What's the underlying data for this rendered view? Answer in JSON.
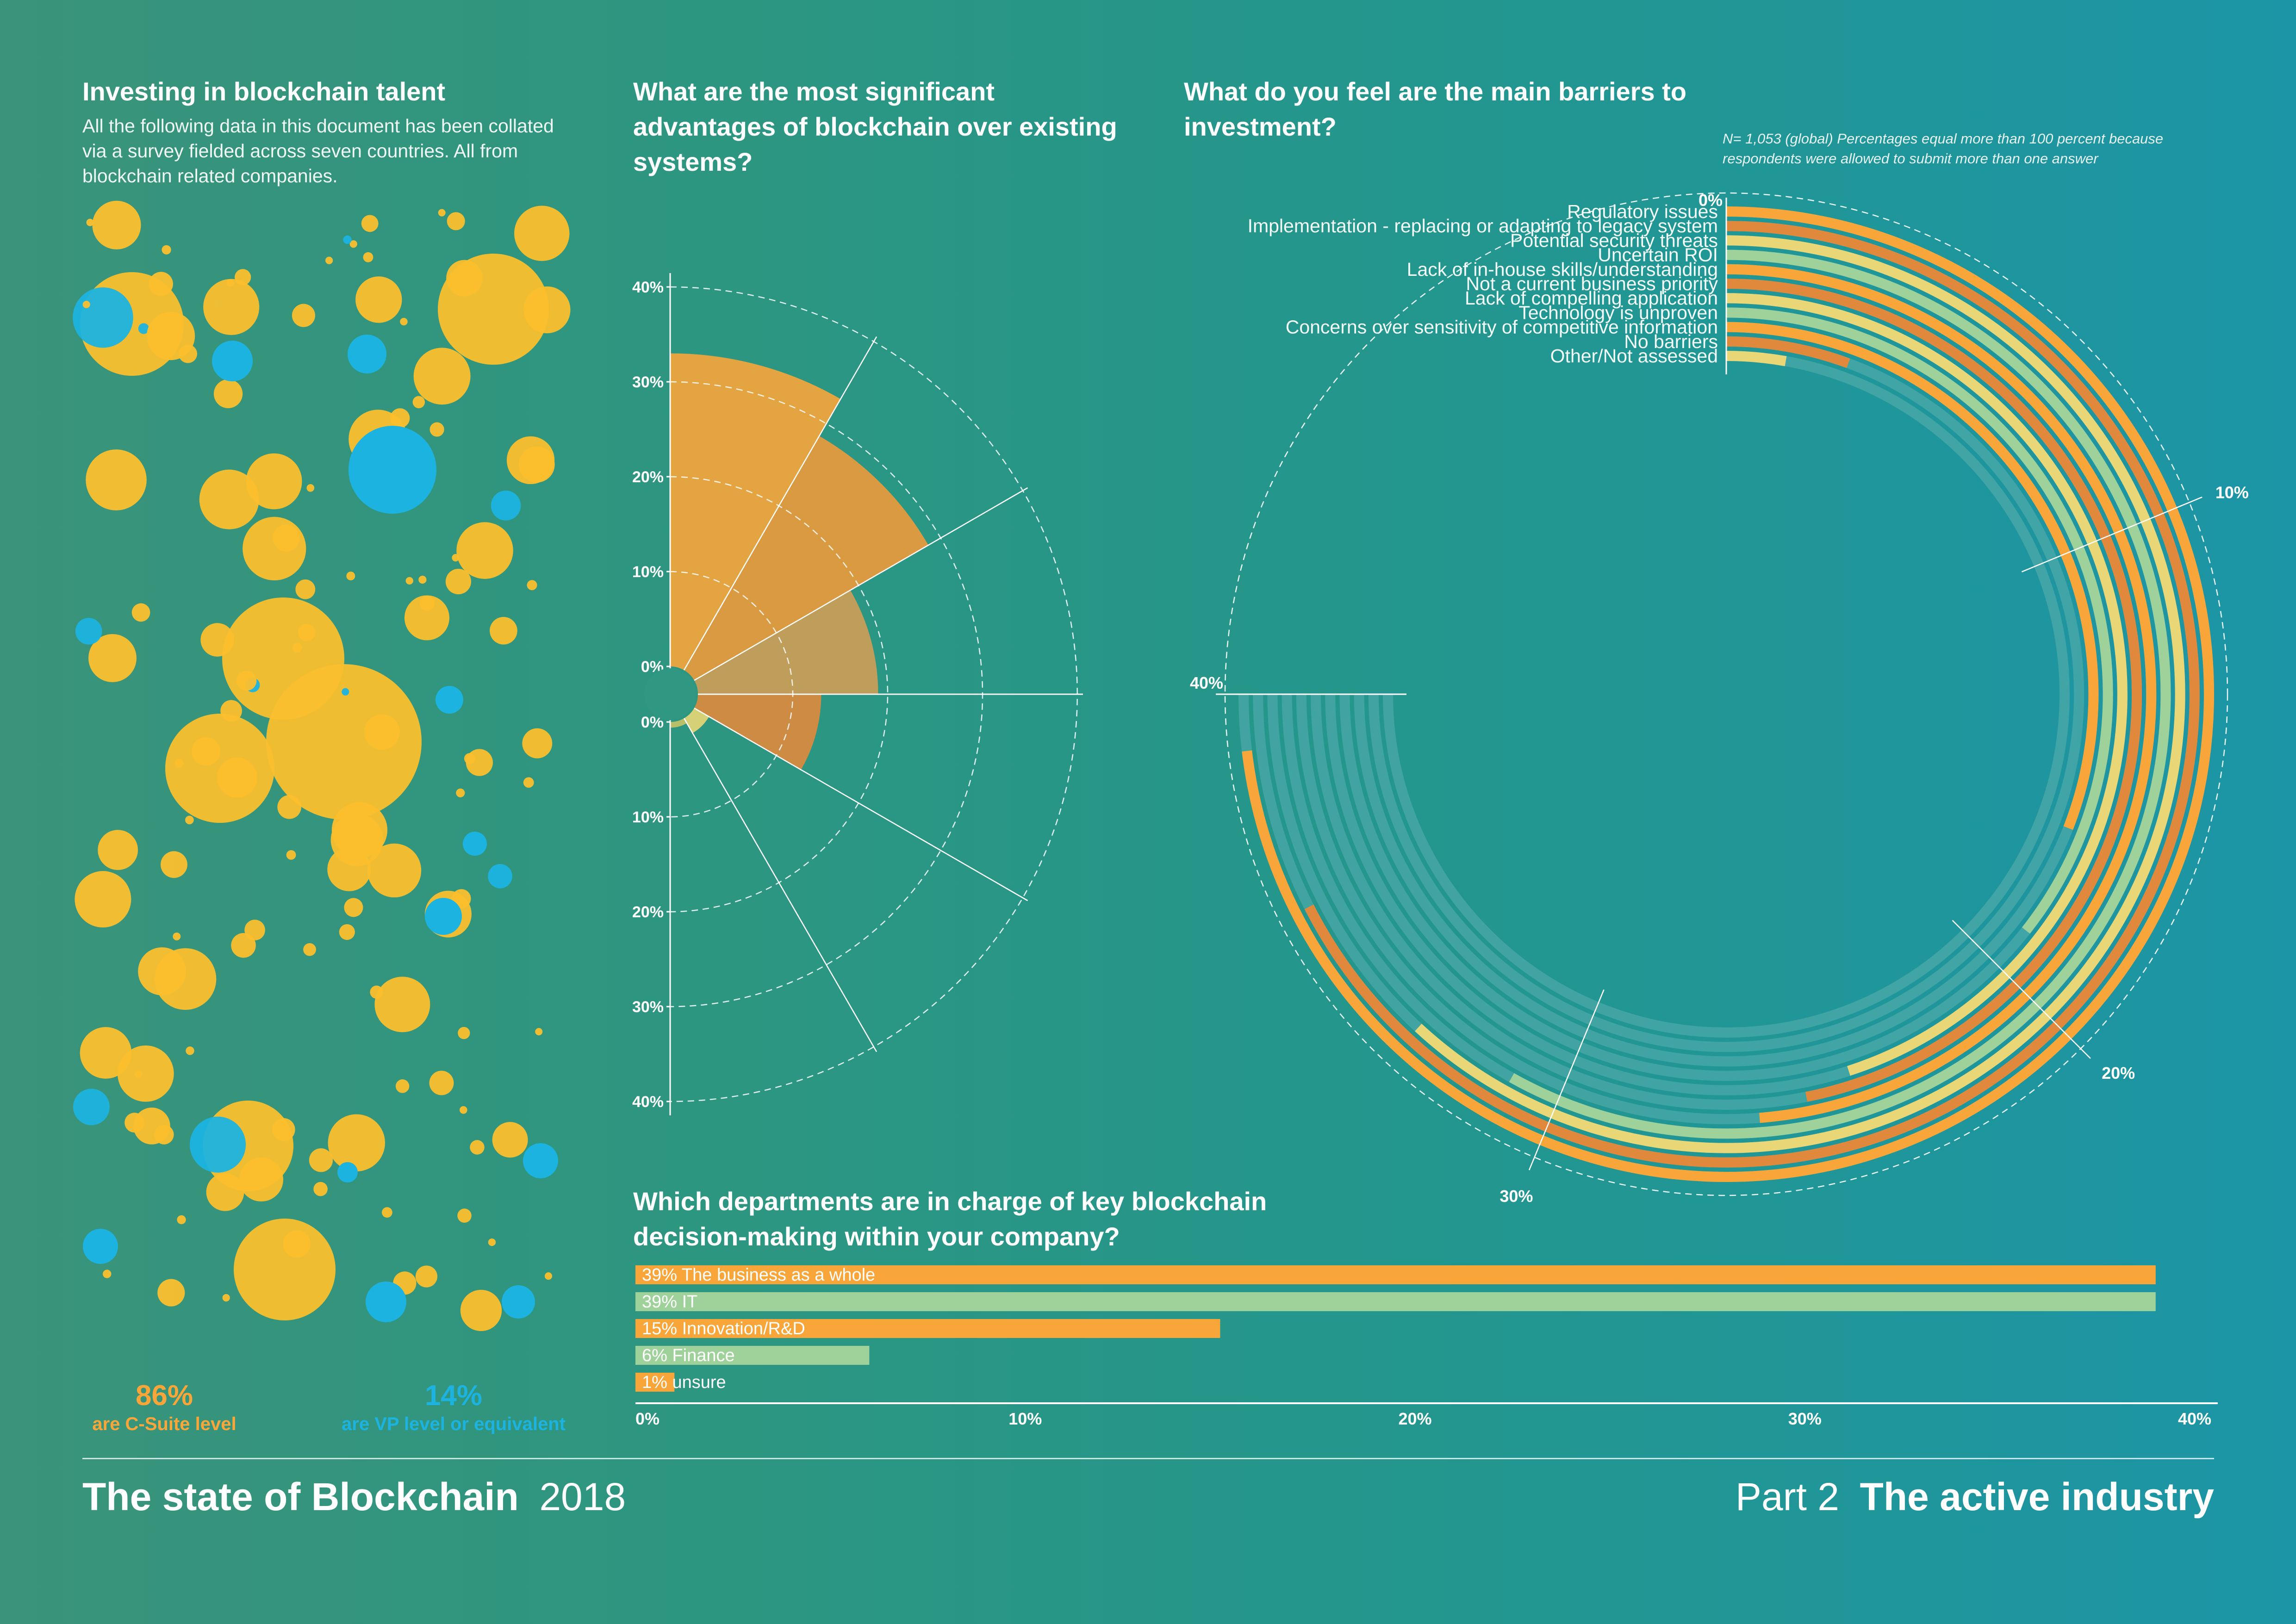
{
  "talent": {
    "title": "Investing in blockchain talent",
    "description": "All the following data in this document has been collated via a survey fielded across seven countries. All from blockchain related companies.",
    "stat_csuite_value": "86%",
    "stat_csuite_label": "are C-Suite level",
    "stat_vp_value": "14%",
    "stat_vp_label": "are VP level or equivalent"
  },
  "colors": {
    "orange": "#f8a53a",
    "dark_orange": "#e0893d",
    "yellow": "#fbbf2e",
    "light_yellow": "#e9d676",
    "light_green": "#9fd19a",
    "blue": "#1cb3e0",
    "track": "#4aa8a8"
  },
  "advantages": {
    "title": "What are the most significant advantages of blockchain over existing systems?"
  },
  "barriers": {
    "title": "What do you feel are the main barriers to investment?",
    "note": "N= 1,053 (global) Percentages equal more than 100 percent because respondents were allowed to submit more than one answer"
  },
  "departments": {
    "title": "Which departments are in charge of key blockchain decision-making within your company?"
  },
  "footer": {
    "title": "The state of Blockchain",
    "year": "2018",
    "part": "Part 2",
    "part_title": "The active industry"
  },
  "chart_data": [
    {
      "type": "bubble",
      "name": "talent-bubbles",
      "categories": [
        "C-Suite level",
        "VP level or equivalent"
      ],
      "values": [
        86,
        14
      ],
      "unit": "%"
    },
    {
      "type": "polar-bar",
      "name": "advantages",
      "rlim": [
        0,
        40
      ],
      "ticks": [
        "0%",
        "10%",
        "20%",
        "30%",
        "40%"
      ],
      "values": [
        33,
        28.5,
        19,
        13,
        1.8,
        0.6
      ]
    },
    {
      "type": "radial-bar",
      "name": "barriers",
      "ticks": [
        "0%",
        "10%",
        "20%",
        "30%",
        "40%"
      ],
      "categories": [
        "Regulatory issues",
        "Implementation - replacing or adapting to legacy system",
        "Potential security threats",
        "Uncertain ROI",
        "Lack of in-house skills/understanding",
        "Not a current business priority",
        "Lack of compelling application",
        "Technology is unproven",
        "Concerns over sensitivity of competitive information",
        "No barriers",
        "Other/Not assessed"
      ],
      "values": [
        39,
        36,
        33,
        31,
        26,
        25,
        24,
        19,
        16.5,
        3,
        1.5
      ]
    },
    {
      "type": "bar",
      "name": "departments",
      "categories": [
        "39% The business as a whole",
        "39% IT",
        "15% Innovation/R&D",
        "6% Finance",
        "1% unsure"
      ],
      "values": [
        39,
        39,
        15,
        6,
        1
      ],
      "xlim": [
        0,
        40
      ],
      "ticks": [
        "0%",
        "10%",
        "20%",
        "30%",
        "40%"
      ]
    }
  ]
}
